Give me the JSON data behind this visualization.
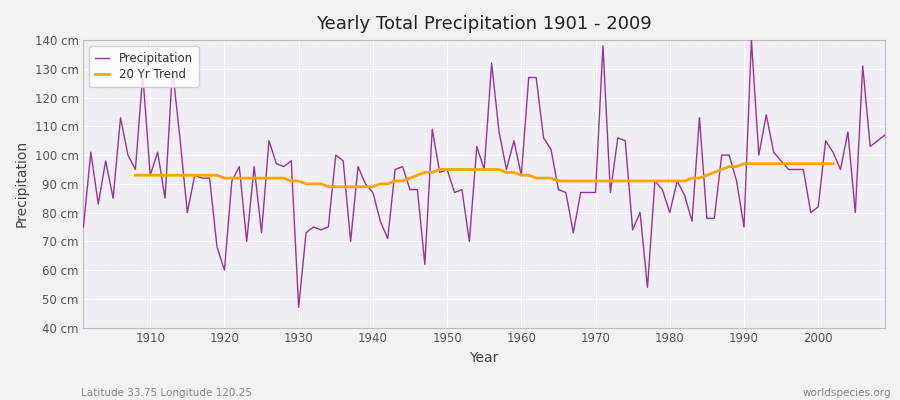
{
  "title": "Yearly Total Precipitation 1901 - 2009",
  "xlabel": "Year",
  "ylabel": "Precipitation",
  "subtitle": "Latitude 33.75 Longitude 120.25",
  "watermark": "worldspecies.org",
  "ylim": [
    40,
    140
  ],
  "yticks": [
    40,
    50,
    60,
    70,
    80,
    90,
    100,
    110,
    120,
    130,
    140
  ],
  "ytick_labels": [
    "40 cm",
    "50 cm",
    "60 cm",
    "70 cm",
    "80 cm",
    "90 cm",
    "100 cm",
    "110 cm",
    "120 cm",
    "130 cm",
    "140 cm"
  ],
  "xlim": [
    1901,
    2009
  ],
  "xticks": [
    1910,
    1920,
    1930,
    1940,
    1950,
    1960,
    1970,
    1980,
    1990,
    2000
  ],
  "precip_color": "#993399",
  "trend_color": "#FFA500",
  "bg_color": "#EEEEF4",
  "fig_bg": "#F2F2F2",
  "legend_labels": [
    "Precipitation",
    "20 Yr Trend"
  ],
  "years": [
    1901,
    1902,
    1903,
    1904,
    1905,
    1906,
    1907,
    1908,
    1909,
    1910,
    1911,
    1912,
    1913,
    1914,
    1915,
    1916,
    1917,
    1918,
    1919,
    1920,
    1921,
    1922,
    1923,
    1924,
    1925,
    1926,
    1927,
    1928,
    1929,
    1930,
    1931,
    1932,
    1933,
    1934,
    1935,
    1936,
    1937,
    1938,
    1939,
    1940,
    1941,
    1942,
    1943,
    1944,
    1945,
    1946,
    1947,
    1948,
    1949,
    1950,
    1951,
    1952,
    1953,
    1954,
    1955,
    1956,
    1957,
    1958,
    1959,
    1960,
    1961,
    1962,
    1963,
    1964,
    1965,
    1966,
    1967,
    1968,
    1969,
    1970,
    1971,
    1972,
    1973,
    1974,
    1975,
    1976,
    1977,
    1978,
    1979,
    1980,
    1981,
    1982,
    1983,
    1984,
    1985,
    1986,
    1987,
    1988,
    1989,
    1990,
    1991,
    1992,
    1993,
    1994,
    1995,
    1996,
    1997,
    1998,
    1999,
    2000,
    2001,
    2002,
    2003,
    2004,
    2005,
    2006,
    2007,
    2008,
    2009
  ],
  "precip": [
    75,
    101,
    83,
    98,
    85,
    113,
    100,
    95,
    128,
    93,
    101,
    85,
    130,
    106,
    80,
    93,
    92,
    92,
    68,
    60,
    91,
    96,
    70,
    96,
    73,
    105,
    97,
    96,
    98,
    47,
    73,
    75,
    74,
    75,
    100,
    98,
    70,
    96,
    90,
    87,
    77,
    71,
    95,
    96,
    88,
    88,
    62,
    109,
    94,
    95,
    87,
    88,
    70,
    103,
    95,
    132,
    108,
    95,
    105,
    93,
    127,
    127,
    106,
    102,
    88,
    87,
    73,
    87,
    87,
    87,
    138,
    87,
    106,
    105,
    74,
    80,
    54,
    91,
    88,
    80,
    91,
    86,
    77,
    113,
    78,
    78,
    100,
    100,
    91,
    75,
    140,
    100,
    114,
    101,
    98,
    95,
    95,
    95,
    80,
    82,
    105,
    101,
    95,
    108,
    80,
    131,
    103,
    105,
    107
  ],
  "trend_years": [
    1908,
    1909,
    1910,
    1911,
    1912,
    1913,
    1914,
    1915,
    1916,
    1917,
    1918,
    1919,
    1920,
    1921,
    1922,
    1923,
    1924,
    1925,
    1926,
    1927,
    1928,
    1929,
    1930,
    1931,
    1932,
    1933,
    1934,
    1935,
    1936,
    1937,
    1938,
    1939,
    1940,
    1941,
    1942,
    1943,
    1944,
    1945,
    1946,
    1947,
    1948,
    1949,
    1950,
    1951,
    1952,
    1953,
    1954,
    1955,
    1956,
    1957,
    1958,
    1959,
    1960,
    1961,
    1962,
    1963,
    1964,
    1965,
    1966,
    1967,
    1968,
    1969,
    1970,
    1971,
    1972,
    1973,
    1974,
    1975,
    1976,
    1977,
    1978,
    1979,
    1980,
    1981,
    1982,
    1983,
    1984,
    1985,
    1986,
    1987,
    1988,
    1989,
    1990,
    1991,
    1992,
    1993,
    1994,
    1995,
    1996,
    1997,
    1998,
    1999,
    2000,
    2001,
    2002
  ],
  "trend": [
    93,
    93,
    93,
    93,
    93,
    93,
    93,
    93,
    93,
    93,
    93,
    93,
    92,
    92,
    92,
    92,
    92,
    92,
    92,
    92,
    92,
    91,
    91,
    90,
    90,
    90,
    89,
    89,
    89,
    89,
    89,
    89,
    89,
    90,
    90,
    91,
    91,
    92,
    93,
    94,
    94,
    95,
    95,
    95,
    95,
    95,
    95,
    95,
    95,
    95,
    94,
    94,
    93,
    93,
    92,
    92,
    92,
    91,
    91,
    91,
    91,
    91,
    91,
    91,
    91,
    91,
    91,
    91,
    91,
    91,
    91,
    91,
    91,
    91,
    91,
    92,
    92,
    93,
    94,
    95,
    96,
    96,
    97,
    97,
    97,
    97,
    97,
    97,
    97,
    97,
    97,
    97,
    97,
    97,
    97
  ]
}
